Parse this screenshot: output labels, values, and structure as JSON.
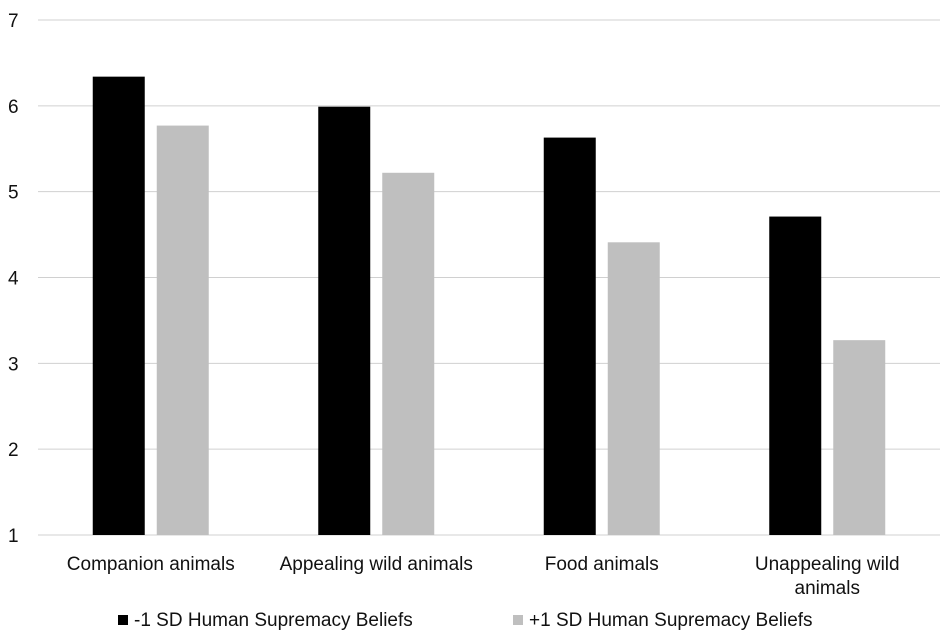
{
  "chart_data": {
    "type": "bar",
    "title": "",
    "xlabel": "",
    "ylabel": "",
    "ylim": [
      1,
      7
    ],
    "yticks": [
      "1",
      "2",
      "3",
      "4",
      "5",
      "6",
      "7"
    ],
    "grid": true,
    "legend_position": "bottom",
    "categories": [
      [
        "Companion animals"
      ],
      [
        "Appealing wild animals"
      ],
      [
        "Food animals"
      ],
      [
        "Unappealing wild",
        "animals"
      ]
    ],
    "series": [
      {
        "name": "-1 SD Human Supremacy Beliefs",
        "color": "#000000",
        "values": [
          6.34,
          5.99,
          5.63,
          4.71
        ]
      },
      {
        "name": "+1 SD Human Supremacy Beliefs",
        "color": "#bfbfbf",
        "values": [
          5.77,
          5.22,
          4.41,
          3.27
        ]
      }
    ]
  }
}
